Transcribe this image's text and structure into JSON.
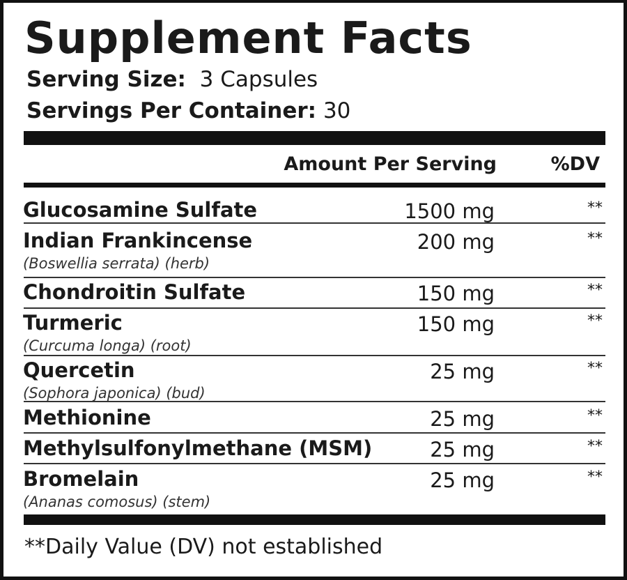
{
  "title": "Supplement Facts",
  "serving_size": {
    "label": "Serving Size:",
    "value": "3 Capsules"
  },
  "servings_per_container": {
    "label": "Servings Per Container:",
    "value": "30"
  },
  "table": {
    "header": {
      "amount": "Amount Per Serving",
      "dv": "%DV"
    },
    "rows": [
      {
        "name": "Glucosamine Sulfate",
        "amount": "1500 mg",
        "dv": "**"
      },
      {
        "name": "Indian Frankincense",
        "sub": "(Boswellia serrata) (herb)",
        "amount": "200 mg",
        "dv": "**"
      },
      {
        "name": "Chondroitin Sulfate",
        "amount": "150 mg",
        "dv": "**"
      },
      {
        "name": "Turmeric",
        "sub": "(Curcuma longa) (root)",
        "amount": "150 mg",
        "dv": "**"
      },
      {
        "name": "Quercetin",
        "sub": "(Sophora japonica) (bud)",
        "amount": "25 mg",
        "dv": "**"
      },
      {
        "name": "Methionine",
        "amount": "25 mg",
        "dv": "**"
      },
      {
        "name": "Methylsulfonylmethane (MSM)",
        "amount": "25 mg",
        "dv": "**"
      },
      {
        "name": "Bromelain",
        "sub": "(Ananas comosus) (stem)",
        "amount": "25 mg",
        "dv": "**"
      }
    ]
  },
  "footnote": "**Daily Value (DV) not established"
}
